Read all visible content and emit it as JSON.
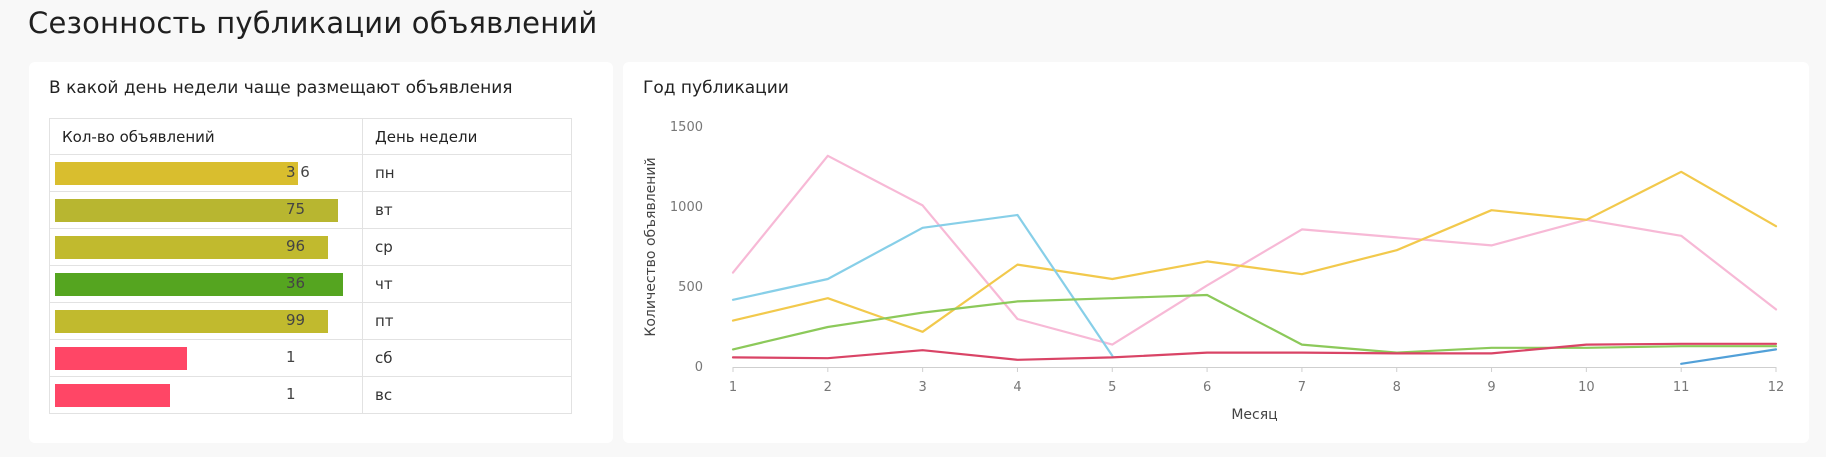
{
  "page": {
    "title": "Сезонность публикации объявлений"
  },
  "weekday_card": {
    "title": "В какой день недели чаще размещают объявления",
    "headers": {
      "count": "Кол-во объявлений",
      "day": "День недели"
    },
    "rows": [
      {
        "day": "пн",
        "value": 236,
        "label": "3 6",
        "color": "#d9be2e"
      },
      {
        "day": "вт",
        "value": 275,
        "label": "75",
        "color": "#b8b630"
      },
      {
        "day": "ср",
        "value": 265,
        "label": "96",
        "color": "#c1ba2e"
      },
      {
        "day": "чт",
        "value": 280,
        "label": "36",
        "color": "#55a520"
      },
      {
        "day": "пт",
        "value": 265,
        "label": "99",
        "color": "#c1ba2e"
      },
      {
        "day": "сб",
        "value": 128,
        "label": "1",
        "color": "#ff4666"
      },
      {
        "day": "вс",
        "value": 112,
        "label": "1",
        "color": "#ff4666"
      }
    ]
  },
  "chart_card": {
    "title": "Год публикации"
  },
  "chart_data": {
    "type": "line",
    "title": "Год публикации",
    "xlabel": "Месяц",
    "ylabel": "Количество объявлений",
    "x": [
      1,
      2,
      3,
      4,
      5,
      6,
      7,
      8,
      9,
      10,
      11,
      12
    ],
    "xlim": [
      1,
      12
    ],
    "ylim": [
      0,
      1500
    ],
    "yticks": [
      0,
      500,
      1000,
      1500
    ],
    "xticks": [
      "1",
      "2",
      "3",
      "4",
      "5",
      "6",
      "7",
      "8",
      "9",
      "10",
      "11",
      "12"
    ],
    "grid": false,
    "series": [
      {
        "color": "#f7b9d6",
        "values": [
          590,
          1320,
          1010,
          300,
          140,
          510,
          860,
          810,
          760,
          920,
          820,
          360
        ]
      },
      {
        "color": "#f2c94c",
        "values": [
          290,
          430,
          220,
          640,
          550,
          660,
          580,
          730,
          980,
          920,
          1220,
          880
        ]
      },
      {
        "color": "#87cfe8",
        "values": [
          420,
          550,
          870,
          950,
          70,
          null,
          null,
          null,
          null,
          null,
          null,
          null
        ]
      },
      {
        "color": "#52a0d8",
        "values": [
          null,
          null,
          null,
          null,
          null,
          null,
          null,
          null,
          null,
          null,
          20,
          110
        ]
      },
      {
        "color": "#8cc95a",
        "values": [
          110,
          250,
          340,
          410,
          430,
          450,
          140,
          90,
          120,
          120,
          130,
          130
        ]
      },
      {
        "color": "#d94466",
        "values": [
          60,
          55,
          105,
          45,
          60,
          90,
          90,
          85,
          85,
          140,
          145,
          145
        ]
      }
    ]
  }
}
